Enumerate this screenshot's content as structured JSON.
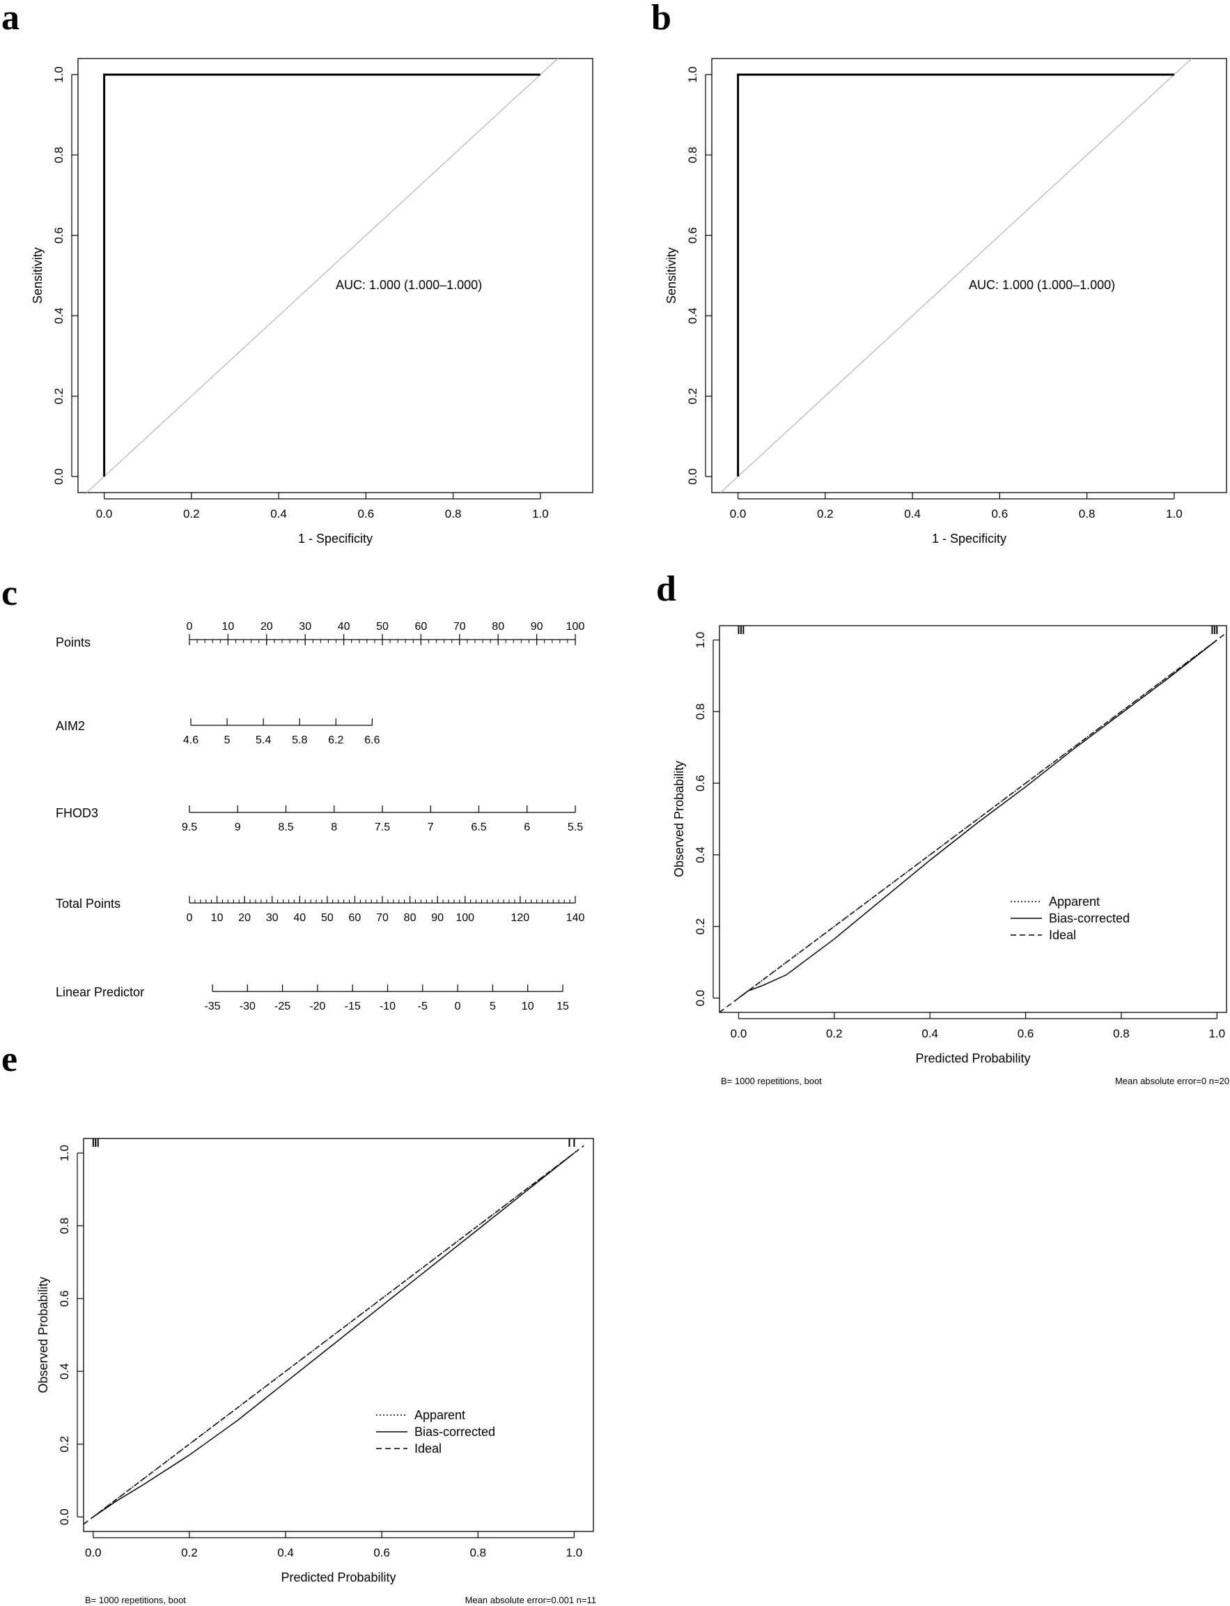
{
  "panels": {
    "a": "a",
    "b": "b",
    "c": "c",
    "d": "d",
    "e": "e"
  },
  "chart_data": [
    {
      "id": "a",
      "type": "line",
      "xlabel": "1 - Specificity",
      "ylabel": "Sensitivity",
      "xlim": [
        -0.06,
        1.12
      ],
      "ylim": [
        -0.04,
        1.04
      ],
      "xticks": [
        "0.0",
        "0.2",
        "0.4",
        "0.6",
        "0.8",
        "1.0"
      ],
      "yticks": [
        "0.0",
        "0.2",
        "0.4",
        "0.6",
        "0.8",
        "1.0"
      ],
      "annotation": "AUC: 1.000 (1.000–1.000)",
      "roc": {
        "x": [
          0,
          0,
          1
        ],
        "y": [
          0,
          1,
          1
        ]
      },
      "reference": {
        "x": [
          -0.04,
          1.04
        ],
        "y": [
          -0.04,
          1.04
        ]
      }
    },
    {
      "id": "b",
      "type": "line",
      "xlabel": "1 - Specificity",
      "ylabel": "Sensitivity",
      "xlim": [
        -0.06,
        1.12
      ],
      "ylim": [
        -0.04,
        1.04
      ],
      "xticks": [
        "0.0",
        "0.2",
        "0.4",
        "0.6",
        "0.8",
        "1.0"
      ],
      "yticks": [
        "0.0",
        "0.2",
        "0.4",
        "0.6",
        "0.8",
        "1.0"
      ],
      "annotation": "AUC: 1.000 (1.000–1.000)",
      "roc": {
        "x": [
          0,
          0,
          1
        ],
        "y": [
          0,
          1,
          1
        ]
      },
      "reference": {
        "x": [
          -0.04,
          1.04
        ],
        "y": [
          -0.04,
          1.04
        ]
      }
    },
    {
      "id": "c",
      "type": "nomogram",
      "rows": [
        {
          "label": "Points",
          "ticks": [
            "0",
            "10",
            "20",
            "30",
            "40",
            "50",
            "60",
            "70",
            "80",
            "90",
            "100"
          ],
          "range": [
            0,
            100
          ],
          "minor": true
        },
        {
          "label": "AIM2",
          "ticks": [
            "4.6",
            "5",
            "5.4",
            "5.8",
            "6.2",
            "6.6"
          ],
          "range": [
            0,
            47
          ]
        },
        {
          "label": "FHOD3",
          "ticks": [
            "9.5",
            "9",
            "8.5",
            "8",
            "7.5",
            "7",
            "6.5",
            "6",
            "5.5"
          ],
          "range": [
            0,
            100
          ]
        },
        {
          "label": "Total Points",
          "ticks": [
            "0",
            "10",
            "20",
            "30",
            "40",
            "50",
            "60",
            "70",
            "80",
            "90",
            "100",
            "120",
            "140"
          ],
          "tick_points": [
            0,
            10,
            20,
            30,
            40,
            50,
            60,
            70,
            80,
            90,
            100,
            120,
            140
          ],
          "range": [
            0,
            140
          ],
          "minor": true
        },
        {
          "label": "Linear Predictor",
          "ticks": [
            "-35",
            "-30",
            "-25",
            "-20",
            "-15",
            "-10",
            "-5",
            "0",
            "5",
            "10",
            "15"
          ],
          "tick_points": [
            -35,
            -30,
            -25,
            -20,
            -15,
            -10,
            -5,
            0,
            5,
            10,
            15
          ],
          "range": [
            -35,
            15
          ]
        }
      ]
    },
    {
      "id": "d",
      "type": "line",
      "xlabel": "Predicted Probability",
      "ylabel": "Observed Probability",
      "xlim": [
        -0.04,
        1.02
      ],
      "ylim": [
        -0.04,
        1.04
      ],
      "xticks": [
        "0.0",
        "0.2",
        "0.4",
        "0.6",
        "0.8",
        "1.0"
      ],
      "yticks": [
        "0.0",
        "0.2",
        "0.4",
        "0.6",
        "0.8",
        "1.0"
      ],
      "legend": [
        "Apparent",
        "Bias-corrected",
        "Ideal"
      ],
      "legend_position": "center-right",
      "footer_left": "B= 1000 repetitions, boot",
      "footer_right": "Mean absolute error=0 n=20",
      "series": [
        {
          "name": "Apparent",
          "style": "dotted",
          "x": [
            0,
            0.1,
            0.2,
            0.3,
            0.4,
            0.5,
            0.6,
            0.7,
            0.8,
            0.9,
            1.0
          ],
          "y": [
            0,
            0.1,
            0.2,
            0.3,
            0.4,
            0.5,
            0.6,
            0.7,
            0.8,
            0.9,
            1.0
          ]
        },
        {
          "name": "Bias-corrected",
          "style": "solid",
          "x": [
            0,
            0.02,
            0.05,
            0.1,
            0.2,
            0.3,
            0.4,
            0.5,
            0.6,
            0.7,
            0.8,
            0.9,
            1.0
          ],
          "y": [
            0,
            0.02,
            0.035,
            0.065,
            0.165,
            0.275,
            0.385,
            0.49,
            0.59,
            0.695,
            0.795,
            0.895,
            1.0
          ]
        },
        {
          "name": "Ideal",
          "style": "dashed",
          "x": [
            -0.04,
            1.02
          ],
          "y": [
            -0.04,
            1.02
          ]
        }
      ],
      "rug_low": [
        0.0,
        0.005,
        0.01
      ],
      "rug_high": [
        0.99,
        0.995,
        1.0
      ]
    },
    {
      "id": "e",
      "type": "line",
      "xlabel": "Predicted Probability",
      "ylabel": "Observed Probability",
      "xlim": [
        -0.02,
        1.04
      ],
      "ylim": [
        -0.04,
        1.04
      ],
      "xticks": [
        "0.0",
        "0.2",
        "0.4",
        "0.6",
        "0.8",
        "1.0"
      ],
      "yticks": [
        "0.0",
        "0.2",
        "0.4",
        "0.6",
        "0.8",
        "1.0"
      ],
      "legend": [
        "Apparent",
        "Bias-corrected",
        "Ideal"
      ],
      "legend_position": "center-right",
      "footer_left": "B= 1000 repetitions, boot",
      "footer_right": "Mean absolute error=0.001 n=11",
      "series": [
        {
          "name": "Apparent",
          "style": "dotted",
          "x": [
            0,
            0.1,
            0.2,
            0.3,
            0.4,
            0.5,
            0.6,
            0.7,
            0.8,
            0.9,
            1.0
          ],
          "y": [
            0,
            0.1,
            0.2,
            0.3,
            0.4,
            0.5,
            0.6,
            0.7,
            0.8,
            0.9,
            1.0
          ]
        },
        {
          "name": "Bias-corrected",
          "style": "solid",
          "x": [
            0,
            0.05,
            0.1,
            0.2,
            0.3,
            0.4,
            0.5,
            0.6,
            0.7,
            0.8,
            0.9,
            1.0
          ],
          "y": [
            0,
            0.045,
            0.085,
            0.17,
            0.265,
            0.37,
            0.475,
            0.58,
            0.685,
            0.79,
            0.895,
            1.0
          ]
        },
        {
          "name": "Ideal",
          "style": "dashed",
          "x": [
            -0.02,
            1.02
          ],
          "y": [
            -0.02,
            1.02
          ]
        }
      ],
      "rug_low": [
        0.0,
        0.005,
        0.01
      ],
      "rug_high": [
        0.99,
        1.0
      ]
    }
  ]
}
